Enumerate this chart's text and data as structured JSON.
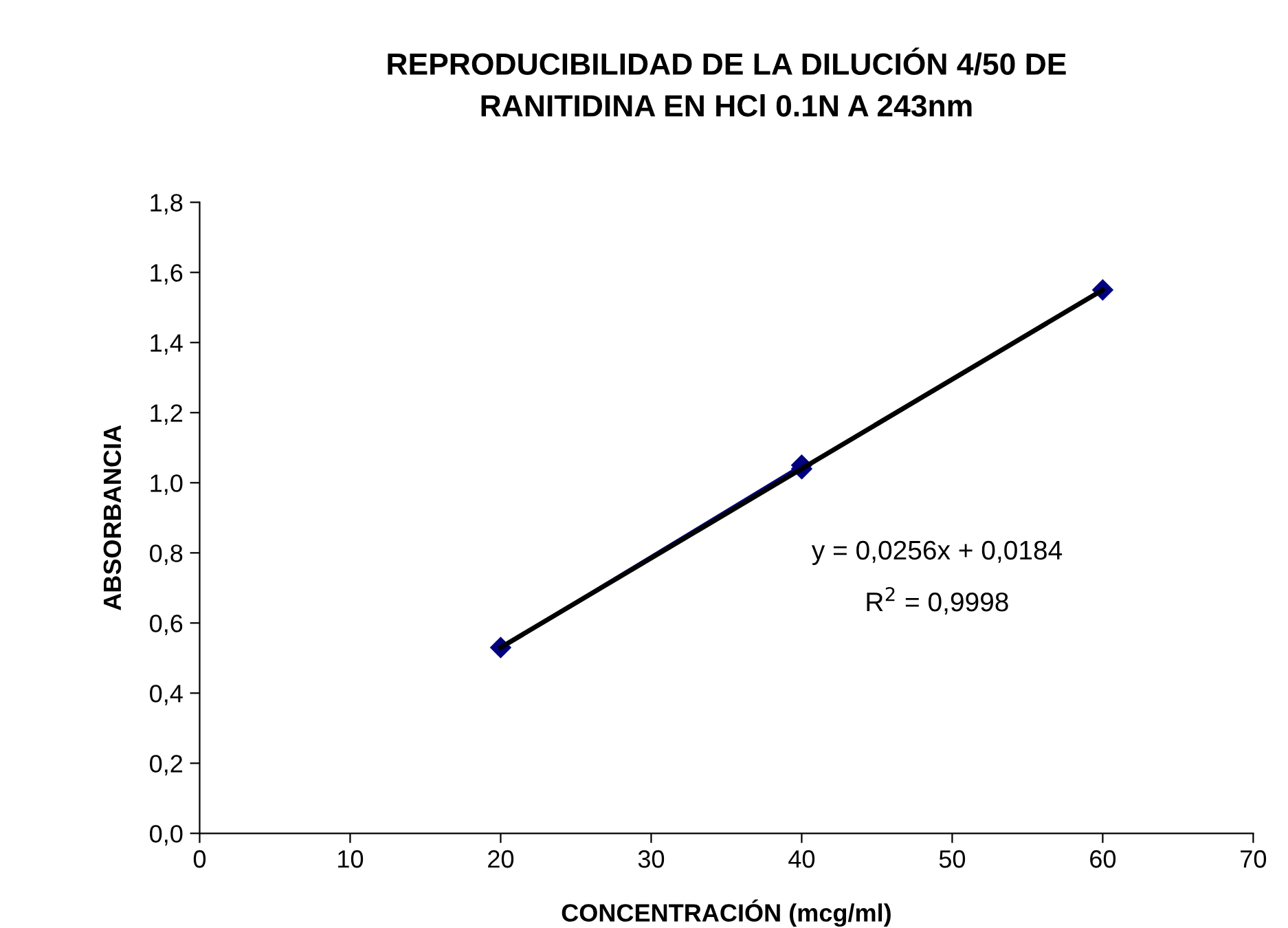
{
  "chart_data": {
    "type": "line",
    "title": "REPRODUCIBILIDAD DE LA DILUCIÓN 4/50 DE\nRANITIDINA EN HCl 0.1N A 243nm",
    "xlabel": "CONCENTRACIÓN (mcg/ml)",
    "ylabel": "ABSORBANCIA",
    "series": [
      {
        "color": "#000080",
        "marker": "diamond",
        "x": [
          20,
          40,
          40,
          60
        ],
        "values": [
          0.53,
          1.05,
          1.04,
          1.55
        ]
      },
      {
        "color": "#000000",
        "marker": "none",
        "x": [
          20,
          60
        ],
        "values": [
          0.53,
          1.55
        ]
      }
    ],
    "annotations": [
      "y = 0,0256x + 0,0184",
      "R$^{2}$ = 0,9998"
    ],
    "xlim": [
      0,
      70
    ],
    "xticks": [
      0,
      10,
      20,
      30,
      40,
      50,
      60,
      70
    ],
    "ylim": [
      0,
      1.8
    ],
    "yticks": [
      {
        "value": 0,
        "label": "0,0"
      },
      {
        "value": 0.2,
        "label": "0,2"
      },
      {
        "value": 0.4,
        "label": "0,4"
      },
      {
        "value": 0.6,
        "label": "0,6"
      },
      {
        "value": 0.8,
        "label": "0,8"
      },
      {
        "value": 1.0,
        "label": "1,0"
      },
      {
        "value": 1.2,
        "label": "1,2"
      },
      {
        "value": 1.4,
        "label": "1,4"
      },
      {
        "value": 1.6,
        "label": "1,6"
      },
      {
        "value": 1.8,
        "label": "1,8"
      }
    ],
    "grid": false,
    "legend": false
  }
}
